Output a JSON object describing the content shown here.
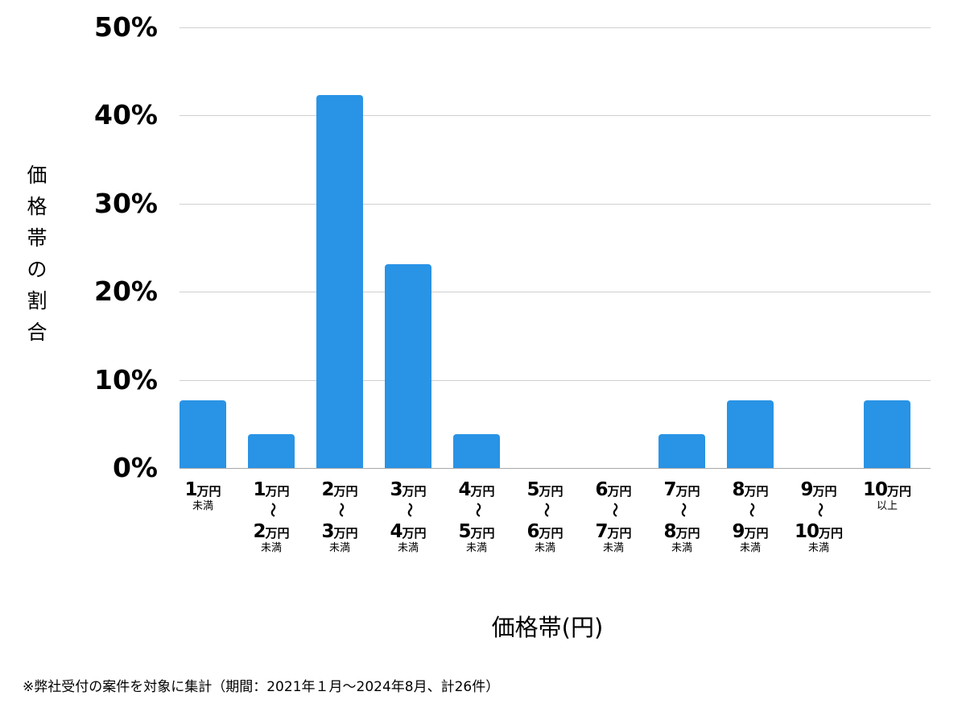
{
  "chart_data": {
    "type": "bar",
    "title": "",
    "xlabel": "価格帯(円)",
    "ylabel": "価格帯の割合",
    "ylim": [
      0,
      50
    ],
    "yticks": [
      "0%",
      "10%",
      "20%",
      "30%",
      "40%",
      "50%"
    ],
    "grid": true,
    "legend": null,
    "bar_color": "#2993e5",
    "categories": [
      "1万円未満",
      "1万円〜2万円未満",
      "2万円〜3万円未満",
      "3万円〜4万円未満",
      "4万円〜5万円未満",
      "5万円〜6万円未満",
      "6万円〜7万円未満",
      "7万円〜8万円未満",
      "8万円〜9万円未満",
      "9万円〜10万円未満",
      "10万円以上"
    ],
    "values": [
      7.7,
      3.8,
      42.3,
      23.1,
      3.8,
      0,
      0,
      3.8,
      7.7,
      0,
      7.7
    ],
    "footnote": "※弊社受付の案件を対象に集計（期間：2021年１月〜2024年8月、計26件）"
  },
  "axis": {
    "y_title_chars": [
      "価",
      "格",
      "帯",
      "の",
      "割",
      "合"
    ],
    "x_title": "価格帯(円)",
    "yticks": [
      {
        "label": "50%",
        "value": 50
      },
      {
        "label": "40%",
        "value": 40
      },
      {
        "label": "30%",
        "value": 30
      },
      {
        "label": "20%",
        "value": 20
      },
      {
        "label": "10%",
        "value": 10
      },
      {
        "label": "0%",
        "value": 0
      }
    ]
  },
  "xcats": [
    {
      "from_num": "1",
      "unit": "万円",
      "to_num": "",
      "suffix": "未満"
    },
    {
      "from_num": "1",
      "unit": "万円",
      "to_num": "2",
      "suffix": "未満"
    },
    {
      "from_num": "2",
      "unit": "万円",
      "to_num": "3",
      "suffix": "未満"
    },
    {
      "from_num": "3",
      "unit": "万円",
      "to_num": "4",
      "suffix": "未満"
    },
    {
      "from_num": "4",
      "unit": "万円",
      "to_num": "5",
      "suffix": "未満"
    },
    {
      "from_num": "5",
      "unit": "万円",
      "to_num": "6",
      "suffix": "未満"
    },
    {
      "from_num": "6",
      "unit": "万円",
      "to_num": "7",
      "suffix": "未満"
    },
    {
      "from_num": "7",
      "unit": "万円",
      "to_num": "8",
      "suffix": "未満"
    },
    {
      "from_num": "8",
      "unit": "万円",
      "to_num": "9",
      "suffix": "未満"
    },
    {
      "from_num": "9",
      "unit": "万円",
      "to_num": "10",
      "suffix": "未満"
    },
    {
      "from_num": "10",
      "unit": "万円",
      "to_num": "",
      "suffix": "以上"
    }
  ],
  "wave_glyph": "〜",
  "footnote": "※弊社受付の案件を対象に集計（期間：2021年１月〜2024年8月、計26件）"
}
